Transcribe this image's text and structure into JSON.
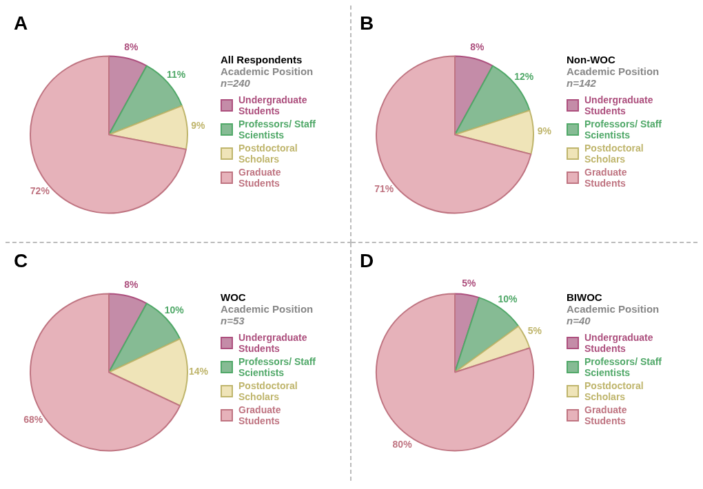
{
  "chart_data": [
    {
      "type": "pie",
      "title": "All Respondents",
      "subtitle": "Academic Position",
      "annotations": [
        "A",
        "n=240"
      ],
      "categories": [
        "Undergraduate Students",
        "Professors/ Staff Scientists",
        "Postdoctoral Scholars",
        "Graduate Students"
      ],
      "values": [
        8,
        11,
        9,
        72
      ],
      "value_labels": [
        "8%",
        "11%",
        "9%",
        "72%"
      ],
      "colors": [
        "#c48ca8",
        "#86bb94",
        "#efe4b8",
        "#e6b2ba"
      ],
      "legend": "right"
    },
    {
      "type": "pie",
      "title": "Non-WOC",
      "subtitle": "Academic Position",
      "annotations": [
        "B",
        "n=142"
      ],
      "categories": [
        "Undergraduate Students",
        "Professors/ Staff Scientists",
        "Postdoctoral Scholars",
        "Graduate Students"
      ],
      "values": [
        8,
        12,
        9,
        71
      ],
      "value_labels": [
        "8%",
        "12%",
        "9%",
        "71%"
      ],
      "colors": [
        "#c48ca8",
        "#86bb94",
        "#efe4b8",
        "#e6b2ba"
      ],
      "legend": "right"
    },
    {
      "type": "pie",
      "title": "WOC",
      "subtitle": "Academic Position",
      "annotations": [
        "C",
        "n=53"
      ],
      "categories": [
        "Undergraduate Students",
        "Professors/ Staff Scientists",
        "Postdoctoral Scholars",
        "Graduate Students"
      ],
      "values": [
        8,
        10,
        14,
        68
      ],
      "value_labels": [
        "8%",
        "10%",
        "14%",
        "68%"
      ],
      "colors": [
        "#c48ca8",
        "#86bb94",
        "#efe4b8",
        "#e6b2ba"
      ],
      "legend": "right"
    },
    {
      "type": "pie",
      "title": "BIWOC",
      "subtitle": "Academic Position",
      "annotations": [
        "D",
        "n=40"
      ],
      "categories": [
        "Undergraduate Students",
        "Professors/ Staff Scientists",
        "Postdoctoral Scholars",
        "Graduate Students"
      ],
      "values": [
        5,
        10,
        5,
        80
      ],
      "value_labels": [
        "5%",
        "10%",
        "5%",
        "80%"
      ],
      "colors": [
        "#c48ca8",
        "#86bb94",
        "#efe4b8",
        "#e6b2ba"
      ],
      "legend": "right"
    }
  ]
}
